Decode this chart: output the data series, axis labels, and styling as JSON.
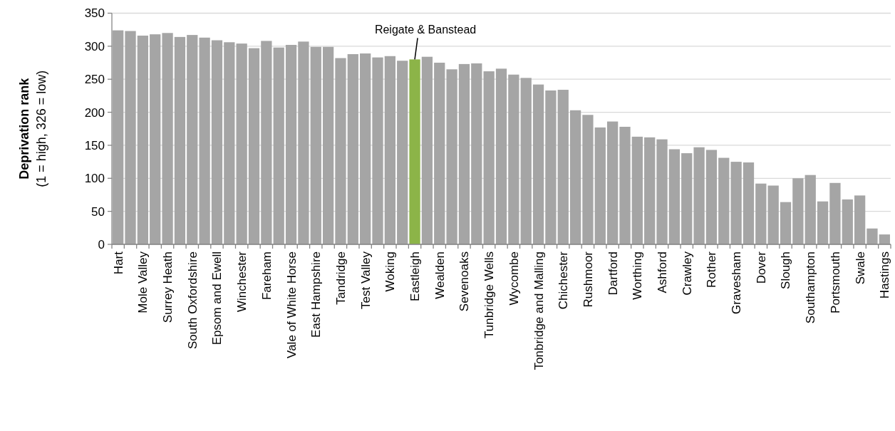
{
  "chart_data": {
    "type": "bar",
    "ylabel": "Deprivation rank\n(1 = high, 326 = low)",
    "categories": [
      "Hart",
      null,
      "Mole Valley",
      null,
      "Surrey Heath",
      null,
      "South Oxfordshire",
      null,
      "Epsom and Ewell",
      null,
      "Winchester",
      null,
      "Fareham",
      null,
      "Vale of White Horse",
      null,
      "East Hampshire",
      null,
      "Tandridge",
      null,
      "Test Valley",
      null,
      "Woking",
      null,
      "Eastleigh",
      null,
      "Wealden",
      null,
      "Sevenoaks",
      null,
      "Tunbridge Wells",
      null,
      "Wycombe",
      null,
      "Tonbridge and Malling",
      null,
      "Chichester",
      null,
      "Rushmoor",
      null,
      "Dartford",
      null,
      "Worthing",
      null,
      "Ashford",
      null,
      "Crawley",
      null,
      "Rother",
      null,
      "Gravesham",
      null,
      "Dover",
      null,
      "Slough",
      null,
      "Southampton",
      null,
      "Portsmouth",
      null,
      "Swale",
      null,
      "Hastings"
    ],
    "values": [
      324,
      323,
      316,
      318,
      320,
      314,
      317,
      313,
      309,
      306,
      304,
      297,
      308,
      298,
      302,
      307,
      299,
      299,
      282,
      288,
      289,
      283,
      285,
      278,
      280,
      284,
      275,
      265,
      273,
      274,
      262,
      266,
      257,
      252,
      242,
      233,
      234,
      203,
      196,
      177,
      186,
      178,
      163,
      162,
      159,
      144,
      138,
      147,
      143,
      131,
      125,
      124,
      92,
      89,
      64,
      100,
      105,
      65,
      93,
      68,
      74,
      24,
      15
    ],
    "colors": [
      "#a5a5a5",
      "#a5a5a5",
      "#a5a5a5",
      "#a5a5a5",
      "#a5a5a5",
      "#a5a5a5",
      "#a5a5a5",
      "#a5a5a5",
      "#a5a5a5",
      "#a5a5a5",
      "#a5a5a5",
      "#a5a5a5",
      "#a5a5a5",
      "#a5a5a5",
      "#a5a5a5",
      "#a5a5a5",
      "#a5a5a5",
      "#a5a5a5",
      "#a5a5a5",
      "#a5a5a5",
      "#a5a5a5",
      "#a5a5a5",
      "#a5a5a5",
      "#a5a5a5",
      "#8cb448",
      "#a5a5a5",
      "#a5a5a5",
      "#a5a5a5",
      "#a5a5a5",
      "#a5a5a5",
      "#a5a5a5",
      "#a5a5a5",
      "#a5a5a5",
      "#a5a5a5",
      "#a5a5a5",
      "#a5a5a5",
      "#a5a5a5",
      "#a5a5a5",
      "#a5a5a5",
      "#a5a5a5",
      "#a5a5a5",
      "#a5a5a5",
      "#a5a5a5",
      "#a5a5a5",
      "#a5a5a5",
      "#a5a5a5",
      "#a5a5a5",
      "#a5a5a5",
      "#a5a5a5",
      "#a5a5a5",
      "#a5a5a5",
      "#a5a5a5",
      "#a5a5a5",
      "#a5a5a5",
      "#a5a5a5",
      "#a5a5a5",
      "#a5a5a5",
      "#a5a5a5",
      "#a5a5a5",
      "#a5a5a5",
      "#a5a5a5",
      "#a5a5a5",
      "#a5a5a5"
    ],
    "ylim": [
      0,
      350
    ],
    "yticks": [
      0,
      50,
      100,
      150,
      200,
      250,
      300,
      350
    ],
    "grid": "y",
    "annotations": [
      {
        "text": "Reigate & Banstead",
        "x": "Eastleigh",
        "y": 280
      }
    ]
  }
}
